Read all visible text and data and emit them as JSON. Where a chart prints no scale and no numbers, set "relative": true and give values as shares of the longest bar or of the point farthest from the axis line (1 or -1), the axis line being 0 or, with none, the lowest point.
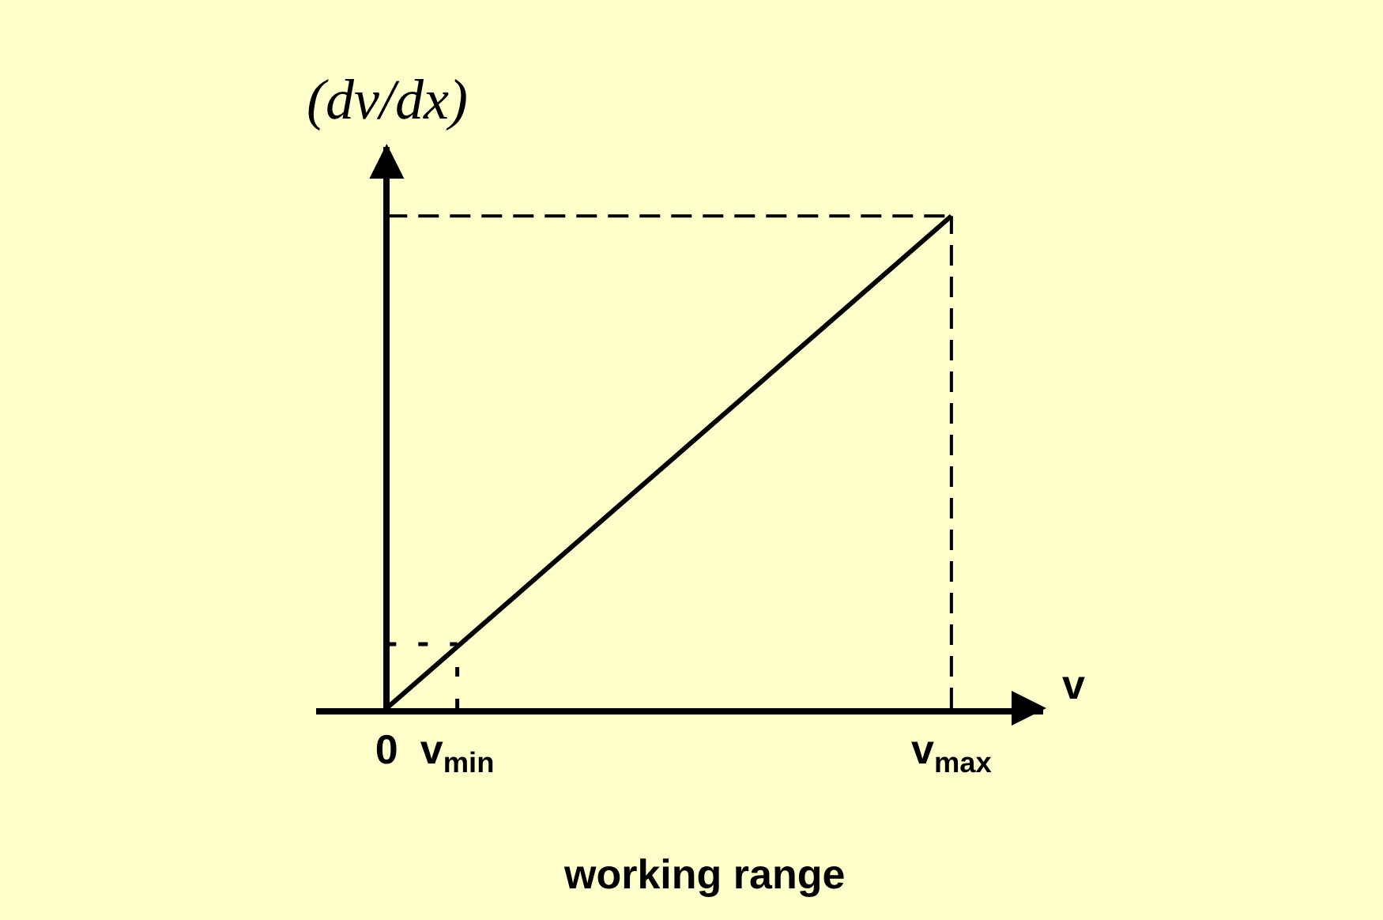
{
  "chart_data": {
    "type": "line",
    "relative": true,
    "xlabel": "v",
    "ylabel": "(dv/dx)",
    "annotations": [
      "working range"
    ],
    "categories": [
      "0",
      "v$_{min}$",
      null,
      null,
      null,
      null,
      null,
      null,
      "v$_{max}$"
    ],
    "tick_labels": "x",
    "series": [
      {
        "color": "#000000",
        "x": [
          "0",
          "v$_{max}$"
        ],
        "values": [
          0,
          1
        ],
        "line_style": "solid"
      },
      {
        "color": "#000000",
        "x": [
          "0",
          "v$_{max}$"
        ],
        "values": [
          1,
          1
        ],
        "line_style": "dashed"
      },
      {
        "color": "#000000",
        "x": [
          "v$_{max}$",
          "v$_{max}$"
        ],
        "values": [
          0,
          1
        ],
        "line_style": "dashed"
      },
      {
        "color": "#000000",
        "x": [
          "0",
          "v$_{min}$"
        ],
        "values": [
          0.13,
          0.13
        ],
        "line_style": "dotted"
      },
      {
        "color": "#000000",
        "x": [
          "v$_{min}$",
          "v$_{min}$"
        ],
        "values": [
          0,
          0.13
        ],
        "line_style": "dotted"
      }
    ]
  }
}
